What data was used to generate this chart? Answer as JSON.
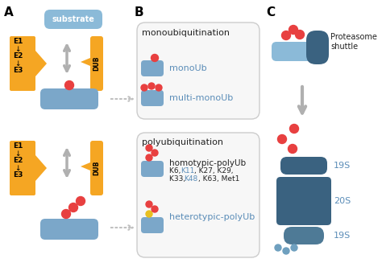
{
  "bg_color": "#ffffff",
  "orange": "#F5A623",
  "blue_sub": "#8BBAD8",
  "blue_light": "#7BA7C9",
  "blue_dark": "#3A6280",
  "blue_darker": "#2D5570",
  "blue_mid": "#4E7A96",
  "blue_shuttle": "#6FA0BF",
  "gray": "#B0B0B0",
  "gray_arrow": "#C0C0C0",
  "red": "#E84040",
  "yellow_ub": "#E8C020",
  "text_blue": "#5B8DB8",
  "text_black": "#222222",
  "box_fill": "#F7F7F7",
  "box_edge": "#CCCCCC",
  "substrate_label": "substrate",
  "dub_label": "DUB",
  "mono_title": "monoubiquitination",
  "mono_label": "monoUb",
  "multiMono_label": "multi-monoUb",
  "poly_title": "polyubiquitination",
  "homo_label": "homotypic-polyUb",
  "hetero_label": "heterotypic-polyUb",
  "proteasome_label": "Proteasome\nshuttle",
  "s19_label": "19S",
  "s20_label": "20S"
}
